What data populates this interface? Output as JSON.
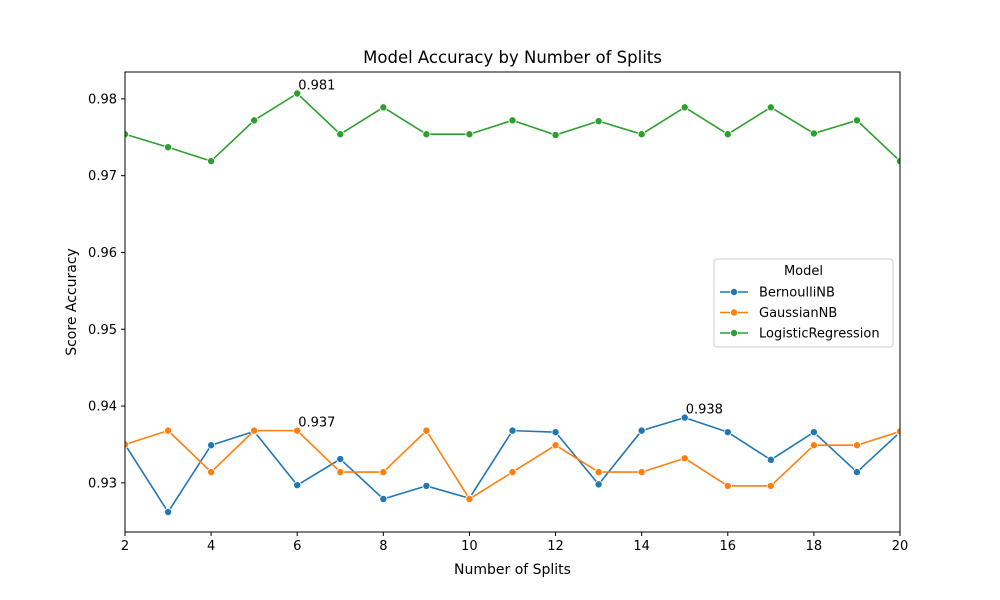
{
  "chart_data": {
    "type": "line",
    "title": "Model Accuracy by Number of Splits",
    "xlabel": "Number of Splits",
    "ylabel": "Score Accuracy",
    "xlim": [
      2,
      20
    ],
    "ylim": [
      0.9236,
      0.9835
    ],
    "x_ticks": [
      2,
      4,
      6,
      8,
      10,
      12,
      14,
      16,
      18,
      20
    ],
    "y_ticks": [
      0.93,
      0.94,
      0.95,
      0.96,
      0.97,
      0.98
    ],
    "y_tick_labels": [
      "0.93",
      "0.94",
      "0.95",
      "0.96",
      "0.97",
      "0.98"
    ],
    "grid": false,
    "legend": {
      "title": "Model",
      "placement": "center-right"
    },
    "x": [
      2,
      3,
      4,
      5,
      6,
      7,
      8,
      9,
      10,
      11,
      12,
      13,
      14,
      15,
      16,
      17,
      18,
      19,
      20
    ],
    "series": [
      {
        "name": "BernoulliNB",
        "color": "#1f77b4",
        "values": [
          0.935,
          0.9262,
          0.9349,
          0.9367,
          0.9297,
          0.9331,
          0.9279,
          0.9296,
          0.928,
          0.9368,
          0.9366,
          0.9298,
          0.9368,
          0.9385,
          0.9366,
          0.933,
          0.9366,
          0.9314,
          0.9366
        ]
      },
      {
        "name": "GaussianNB",
        "color": "#ff7f0e",
        "values": [
          0.935,
          0.9368,
          0.9314,
          0.9368,
          0.9368,
          0.9314,
          0.9314,
          0.9368,
          0.9279,
          0.9314,
          0.9349,
          0.9314,
          0.9314,
          0.9332,
          0.9296,
          0.9296,
          0.9349,
          0.9349,
          0.9367
        ]
      },
      {
        "name": "LogisticRegression",
        "color": "#2ca02c",
        "values": [
          0.9754,
          0.9737,
          0.9719,
          0.9772,
          0.9807,
          0.9754,
          0.9789,
          0.9754,
          0.9754,
          0.9772,
          0.9753,
          0.9771,
          0.9754,
          0.9789,
          0.9754,
          0.9789,
          0.9755,
          0.9772,
          0.9719
        ]
      }
    ],
    "annotations": [
      {
        "text": "0.981",
        "x": 6,
        "y": 0.9807
      },
      {
        "text": "0.937",
        "x": 6,
        "y": 0.9368
      },
      {
        "text": "0.938",
        "x": 15,
        "y": 0.9385
      }
    ]
  }
}
